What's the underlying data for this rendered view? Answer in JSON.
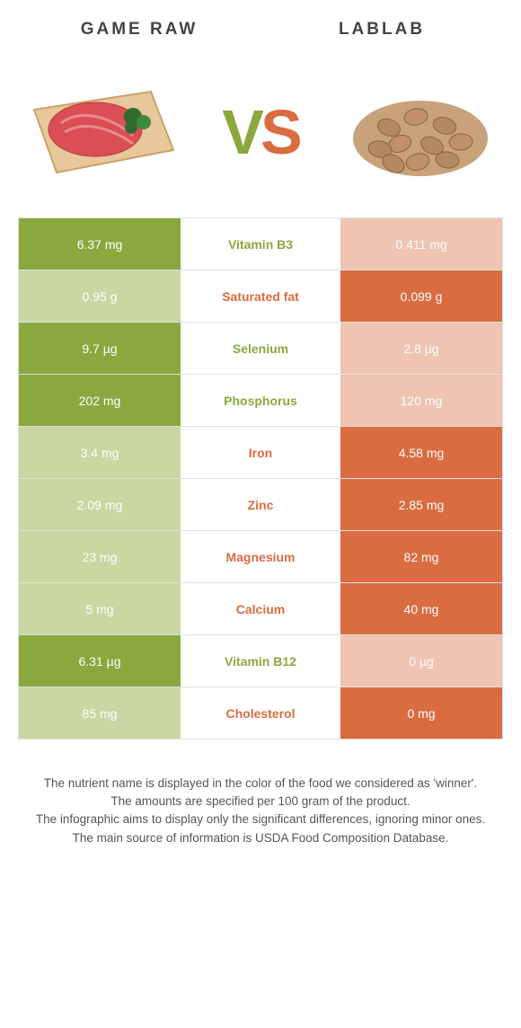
{
  "colors": {
    "left": "#8aa83e",
    "right": "#d96c40",
    "left_dim": "#c9d7a2",
    "right_dim": "#efc4b2",
    "mid_bg": "#ffffff"
  },
  "header": {
    "left_title": "GAME RAW",
    "right_title": "LABLAB",
    "vs_v": "V",
    "vs_s": "S"
  },
  "rows": [
    {
      "label": "Vitamin B3",
      "left": "6.37 mg",
      "right": "0.411 mg",
      "winner": "left"
    },
    {
      "label": "Saturated fat",
      "left": "0.95 g",
      "right": "0.099 g",
      "winner": "right"
    },
    {
      "label": "Selenium",
      "left": "9.7 µg",
      "right": "2.8 µg",
      "winner": "left"
    },
    {
      "label": "Phosphorus",
      "left": "202 mg",
      "right": "120 mg",
      "winner": "left"
    },
    {
      "label": "Iron",
      "left": "3.4 mg",
      "right": "4.58 mg",
      "winner": "right"
    },
    {
      "label": "Zinc",
      "left": "2.09 mg",
      "right": "2.85 mg",
      "winner": "right"
    },
    {
      "label": "Magnesium",
      "left": "23 mg",
      "right": "82 mg",
      "winner": "right"
    },
    {
      "label": "Calcium",
      "left": "5 mg",
      "right": "40 mg",
      "winner": "right"
    },
    {
      "label": "Vitamin B12",
      "left": "6.31 µg",
      "right": "0 µg",
      "winner": "left"
    },
    {
      "label": "Cholesterol",
      "left": "85 mg",
      "right": "0 mg",
      "winner": "right"
    }
  ],
  "footer": {
    "l1": "The nutrient name is displayed in the color of the food we considered as 'winner'.",
    "l2": "The amounts are specified per 100 gram of the product.",
    "l3": "The infographic aims to display only the significant differences, ignoring minor ones.",
    "l4": "The main source of information is USDA Food Composition Database."
  }
}
